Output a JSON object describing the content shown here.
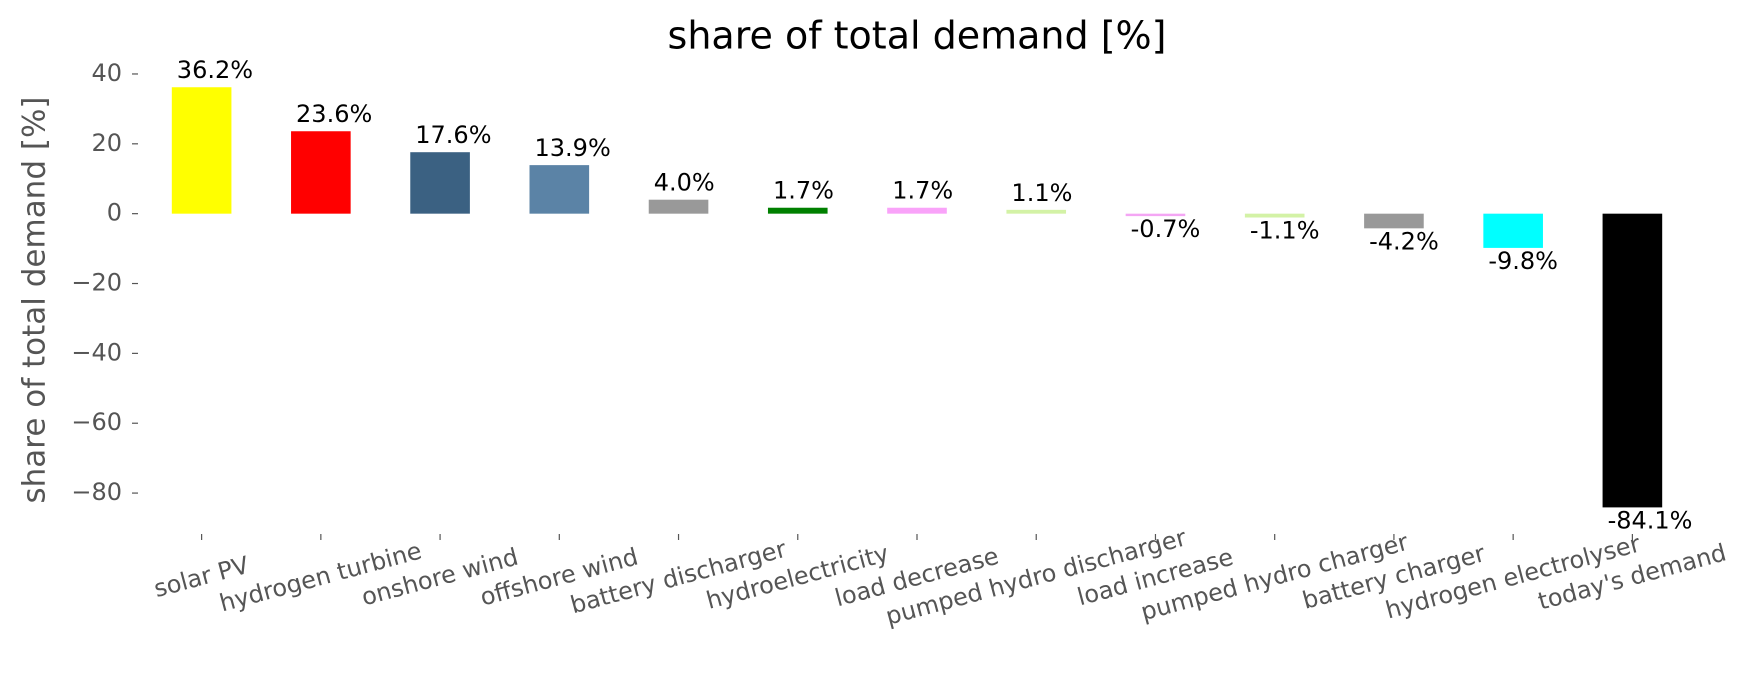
{
  "chart_data": {
    "type": "bar",
    "title": "share of total demand [%]",
    "ylabel": "share of total demand [%]",
    "categories": [
      "solar PV",
      "hydrogen turbine",
      "onshore wind",
      "offshore wind",
      "battery discharger",
      "hydroelectricity",
      "load decrease",
      "pumped hydro discharger",
      "load increase",
      "pumped hydro charger",
      "battery charger",
      "hydrogen electrolyser",
      "today's demand"
    ],
    "values": [
      36.2,
      23.6,
      17.6,
      13.9,
      4.0,
      1.7,
      1.7,
      1.1,
      -0.7,
      -1.1,
      -4.2,
      -9.8,
      -84.1
    ],
    "value_labels": [
      "36.2%",
      "23.6%",
      "17.6%",
      "13.9%",
      "4.0%",
      "1.7%",
      "1.7%",
      "1.1%",
      "-0.7%",
      "-1.1%",
      "-4.2%",
      "-9.8%",
      "-84.1%"
    ],
    "colors": [
      "#ffff00",
      "#ff0000",
      "#3b6182",
      "#5b83a6",
      "#999999",
      "#008000",
      "#f9a3f9",
      "#d3f2a6",
      "#f4a6f4",
      "#d3f2a6",
      "#999999",
      "#00ffff",
      "#000000"
    ],
    "ylim": [
      -90,
      44
    ],
    "yticks": [
      40,
      20,
      0,
      {
        "value": -20,
        "label": "−20"
      },
      {
        "value": -40,
        "label": "−40"
      },
      {
        "value": -60,
        "label": "−60"
      },
      {
        "value": -80,
        "label": "−80"
      }
    ],
    "grid": false
  }
}
